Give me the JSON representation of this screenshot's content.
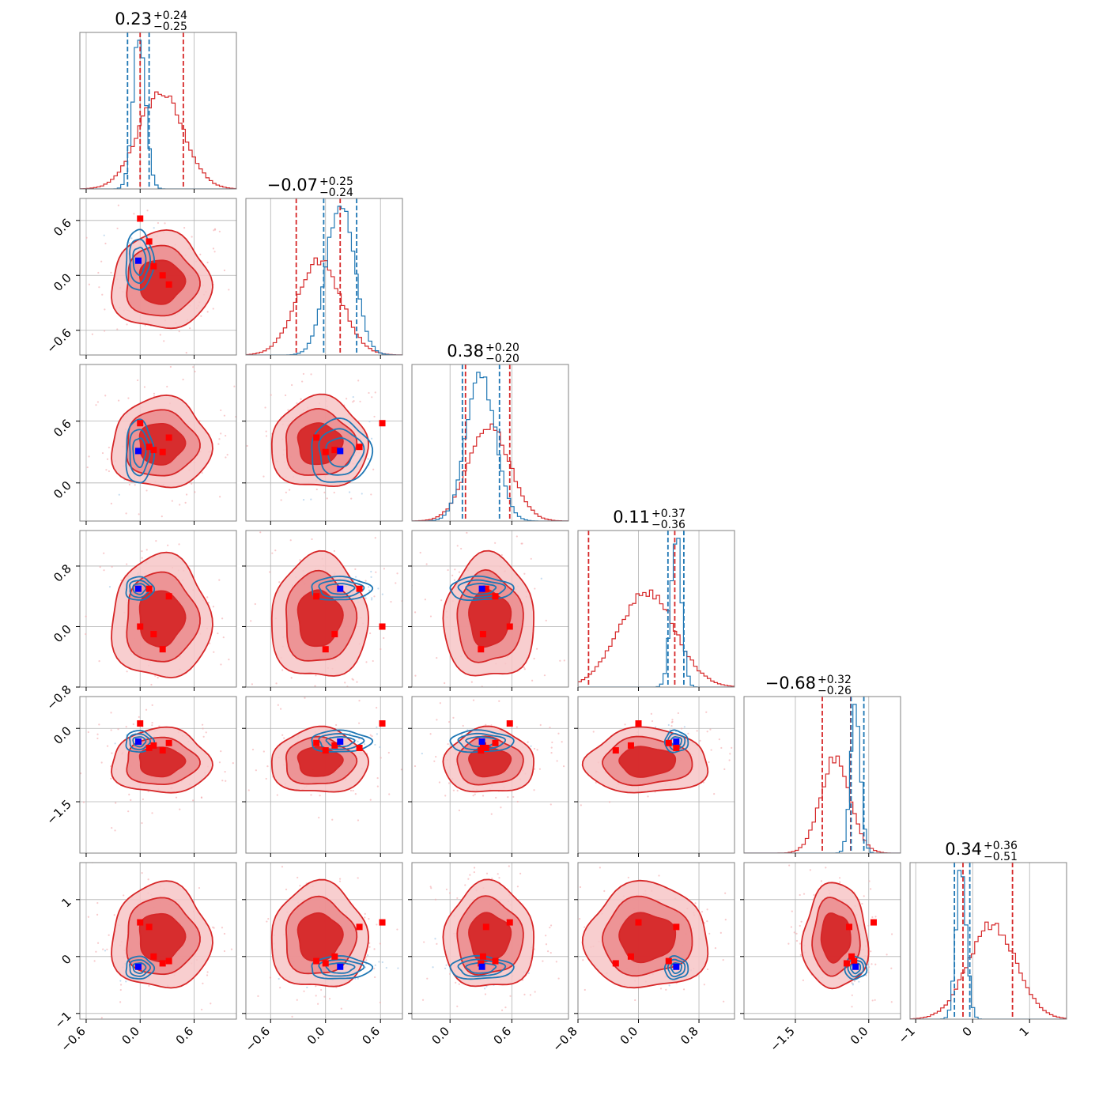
{
  "chart_data": {
    "type": "corner",
    "parameters": [
      {
        "title_value": "0.23",
        "title_plus": "+0.24",
        "title_minus": "−0.25",
        "ticks": [
          {
            "v": -0.6,
            "label": "−0.6"
          },
          {
            "v": 0.0,
            "label": "0.0"
          },
          {
            "v": 0.6,
            "label": "0.6"
          }
        ],
        "range": [
          -0.67,
          1.07
        ]
      },
      {
        "title_value": "−0.07",
        "title_plus": "+0.25",
        "title_minus": "−0.24",
        "ticks": [
          {
            "v": -0.6,
            "label": "−0.6"
          },
          {
            "v": 0.0,
            "label": "0.0"
          },
          {
            "v": 0.6,
            "label": "0.6"
          }
        ],
        "range": [
          -0.87,
          0.84
        ]
      },
      {
        "title_value": "0.38",
        "title_plus": "+0.20",
        "title_minus": "−0.20",
        "ticks": [
          {
            "v": 0.0,
            "label": "0.0"
          },
          {
            "v": 0.6,
            "label": "0.6"
          }
        ],
        "range": [
          -0.37,
          1.15
        ]
      },
      {
        "title_value": "0.11",
        "title_plus": "+0.37",
        "title_minus": "−0.36",
        "ticks": [
          {
            "v": -0.8,
            "label": "−0.8"
          },
          {
            "v": 0.0,
            "label": "0.0"
          },
          {
            "v": 0.8,
            "label": "0.8"
          }
        ],
        "range": [
          -0.8,
          1.27
        ]
      },
      {
        "title_value": "−0.68",
        "title_plus": "+0.32",
        "title_minus": "−0.26",
        "ticks": [
          {
            "v": -1.5,
            "label": "−1.5"
          },
          {
            "v": 0.0,
            "label": "0.0"
          }
        ],
        "range": [
          -2.55,
          0.65
        ]
      },
      {
        "title_value": "0.34",
        "title_plus": "+0.36",
        "title_minus": "−0.51",
        "ticks": [
          {
            "v": -1,
            "label": "−1"
          },
          {
            "v": 0,
            "label": "0"
          },
          {
            "v": 1,
            "label": "1"
          }
        ],
        "range": [
          -1.1,
          1.65
        ]
      }
    ],
    "series": [
      {
        "color": "#d62728",
        "marker_color": "#ff0000",
        "means": [
          0.23,
          -0.07,
          0.38,
          0.11,
          -0.68,
          0.34
        ],
        "sds": [
          0.25,
          0.24,
          0.2,
          0.37,
          0.3,
          0.42
        ],
        "quantiles": [
          [
            0.0,
            0.48
          ],
          [
            -0.32,
            0.16
          ],
          [
            0.15,
            0.58
          ],
          [
            -0.66,
            0.48
          ],
          [
            -0.95,
            -0.37
          ],
          [
            -0.17,
            0.7
          ]
        ],
        "filled": true
      },
      {
        "color": "#1f77b4",
        "marker_color": "#0000ff",
        "means": [
          -0.01,
          0.16,
          0.3,
          0.5,
          -0.27,
          -0.2
        ],
        "sds": [
          0.07,
          0.15,
          0.14,
          0.07,
          0.1,
          0.09
        ],
        "quantiles": [
          [
            -0.14,
            0.1
          ],
          [
            -0.02,
            0.34
          ],
          [
            0.12,
            0.48
          ],
          [
            0.39,
            0.6
          ],
          [
            -0.36,
            -0.1
          ],
          [
            -0.32,
            -0.05
          ]
        ],
        "filled": false
      }
    ],
    "truth_points": {
      "red": [
        [
          0.0,
          0.62,
          0.58,
          0.0,
          0.1,
          0.6
        ],
        [
          0.1,
          0.37,
          0.35,
          0.5,
          -0.4,
          0.52
        ],
        [
          0.15,
          0.1,
          0.32,
          -0.1,
          -0.35,
          0.0
        ],
        [
          0.25,
          0.0,
          0.3,
          -0.3,
          -0.45,
          -0.12
        ],
        [
          0.32,
          -0.1,
          0.44,
          0.4,
          -0.3,
          -0.08
        ]
      ],
      "blue": [
        -0.02,
        0.16,
        0.31,
        0.5,
        -0.27,
        -0.18
      ]
    }
  }
}
